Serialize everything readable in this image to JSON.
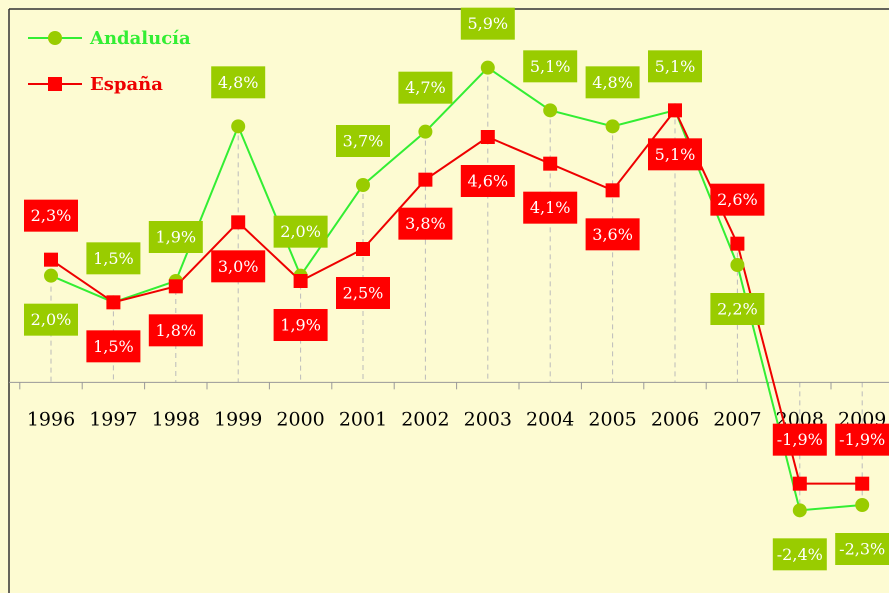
{
  "chart_data": {
    "type": "line",
    "categories": [
      "1996",
      "1997",
      "1998",
      "1999",
      "2000",
      "2001",
      "2002",
      "2003",
      "2004",
      "2005",
      "2006",
      "2007",
      "2008",
      "2009"
    ],
    "series": [
      {
        "name": "Andalucía",
        "color": "#33ee33",
        "marker_color": "#99cc00",
        "values": [
          2.0,
          1.5,
          1.9,
          4.8,
          2.0,
          3.7,
          4.7,
          5.9,
          5.1,
          4.8,
          5.1,
          2.2,
          -2.4,
          -2.3
        ],
        "value_labels": [
          "2,0%",
          "1,5%",
          "1,9%",
          "4,8%",
          "2,0%",
          "3,7%",
          "4,7%",
          "5,9%",
          "5,1%",
          "4,8%",
          "5,1%",
          "2,2%",
          "-2,4%",
          "-2,3%"
        ]
      },
      {
        "name": "España",
        "color": "#ee0000",
        "marker_color": "#ff0000",
        "values": [
          2.3,
          1.5,
          1.8,
          3.0,
          1.9,
          2.5,
          3.8,
          4.6,
          4.1,
          3.6,
          5.1,
          2.6,
          -1.9,
          -1.9
        ],
        "value_labels": [
          "2,3%",
          "1,5%",
          "1,8%",
          "3,0%",
          "1,9%",
          "2,5%",
          "3,8%",
          "4,6%",
          "4,1%",
          "3,6%",
          "5,1%",
          "2,6%",
          "-1,9%",
          "-1,9%"
        ]
      }
    ],
    "ylim": [
      -3.95,
      7.0
    ]
  }
}
